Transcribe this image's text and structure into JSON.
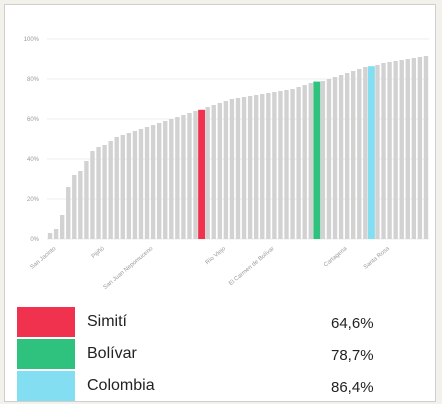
{
  "chart_data": {
    "type": "bar",
    "ylim": [
      0,
      100
    ],
    "y_ticks": [
      "0%",
      "20%",
      "40%",
      "60%",
      "80%",
      "100%"
    ],
    "x_tick_labels": [
      "San Jacinto",
      "Pijiñó",
      "San Juan Nepomuceno",
      "Río Viejo",
      "El Carmen de Bolívar",
      "Cartagena",
      "Santa Rosa"
    ],
    "x_tick_positions": [
      1,
      9,
      17,
      29,
      37,
      49,
      56
    ],
    "grid": true,
    "legend_placement": "bottom",
    "values": [
      3,
      5,
      12,
      26,
      32,
      34,
      39,
      44,
      46,
      47,
      49,
      51,
      52,
      53,
      54,
      55,
      56,
      57,
      58,
      59,
      60,
      61,
      62,
      63,
      64,
      64.6,
      66,
      67,
      68,
      69,
      70,
      70.5,
      71,
      71.5,
      72,
      72.5,
      73,
      73.5,
      74,
      74.5,
      75,
      76,
      77,
      78,
      78.7,
      79,
      80,
      81,
      82,
      83,
      84,
      85,
      86,
      86.4,
      87,
      88,
      88.5,
      89,
      89.5,
      90,
      90.5,
      91,
      91.5
    ],
    "default_bar_color": "#d2d2d2",
    "highlighted": [
      {
        "index": 25,
        "name": "Simití",
        "value": 64.6,
        "label": "64,6%",
        "color": "#f0324f"
      },
      {
        "index": 44,
        "name": "Bolívar",
        "value": 78.7,
        "label": "78,7%",
        "color": "#2ec27e"
      },
      {
        "index": 53,
        "name": "Colombia",
        "value": 86.4,
        "label": "86,4%",
        "color": "#82def0"
      }
    ]
  }
}
